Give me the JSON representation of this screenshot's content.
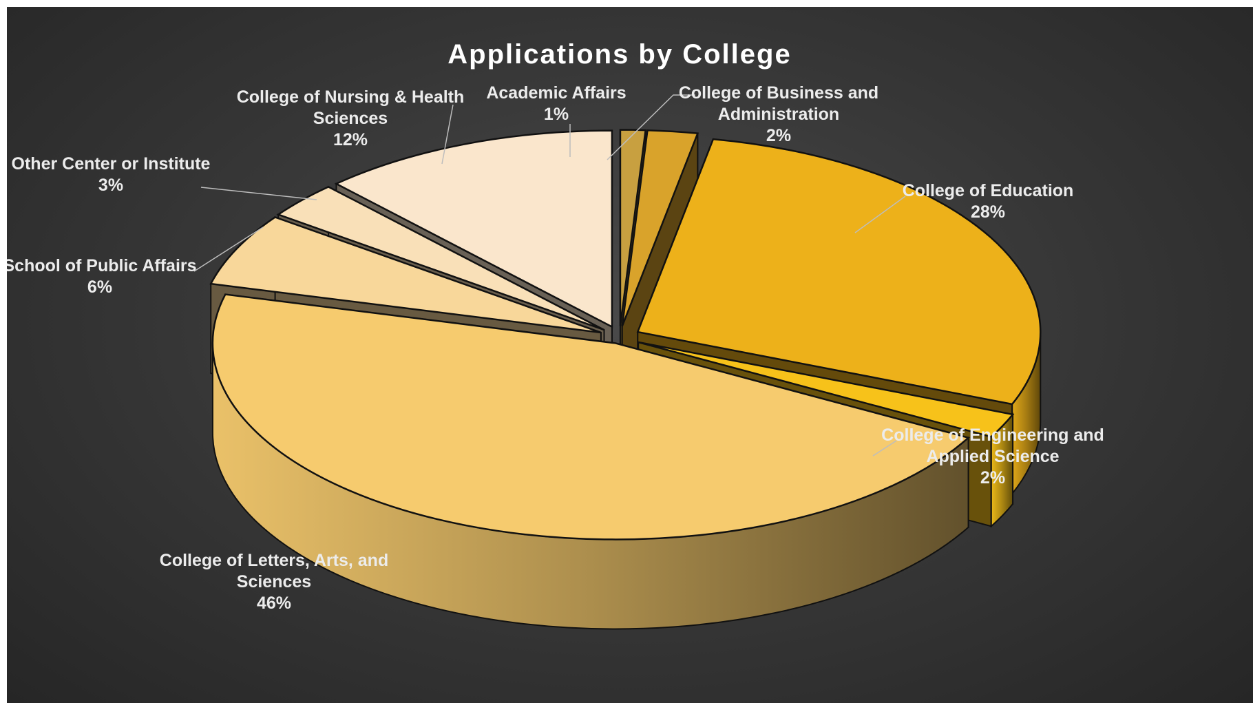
{
  "chart_data": {
    "type": "pie",
    "title": "Applications by College",
    "slices": [
      {
        "name": "Academic Affairs",
        "value": 1,
        "label": "1%",
        "color": "#C8A040"
      },
      {
        "name": "College of Business and Administration",
        "value": 2,
        "label": "2%",
        "color": "#D9A32B"
      },
      {
        "name": "College of Education",
        "value": 28,
        "label": "28%",
        "color": "#EDB11A"
      },
      {
        "name": "College of Engineering and Applied Science",
        "value": 2,
        "label": "2%",
        "color": "#F7C21A"
      },
      {
        "name": "College of Letters, Arts, and Sciences",
        "value": 46,
        "label": "46%",
        "color": "#F6CB6E"
      },
      {
        "name": "School of Public Affairs",
        "value": 6,
        "label": "6%",
        "color": "#F8D79A"
      },
      {
        "name": "Other Center or Institute",
        "value": 3,
        "label": "3%",
        "color": "#F9E0B8"
      },
      {
        "name": "College of Nursing & Health Sciences",
        "value": 12,
        "label": "12%",
        "color": "#FAE6CC"
      }
    ],
    "exploded": true,
    "three_d": true,
    "legend": "none"
  },
  "labels": [
    {
      "lines": [
        "Academic Affairs"
      ],
      "pct": "1%"
    },
    {
      "lines": [
        "College of Business and",
        "Administration"
      ],
      "pct": "2%"
    },
    {
      "lines": [
        "College of Education"
      ],
      "pct": "28%"
    },
    {
      "lines": [
        "College of Engineering and",
        "Applied Science"
      ],
      "pct": "2%"
    },
    {
      "lines": [
        "College of Letters, Arts, and",
        "Sciences"
      ],
      "pct": "46%"
    },
    {
      "lines": [
        "School of Public Affairs"
      ],
      "pct": "6%"
    },
    {
      "lines": [
        "Other Center or Institute"
      ],
      "pct": "3%"
    },
    {
      "lines": [
        "College of Nursing & Health",
        "Sciences"
      ],
      "pct": "12%"
    }
  ],
  "colors": {
    "background": "#3a3a3a",
    "title": "#ffffff",
    "label": "#ececec",
    "outline": "#111111"
  }
}
